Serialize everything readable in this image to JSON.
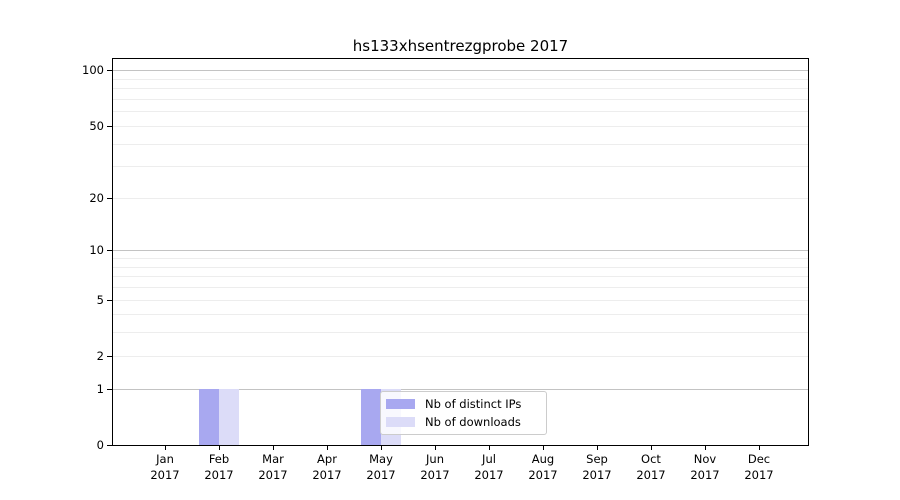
{
  "chart_data": {
    "type": "bar",
    "title": "hs133xhsentrezgprobe 2017",
    "year": "2017",
    "categories": [
      "Jan",
      "Feb",
      "Mar",
      "Apr",
      "May",
      "Jun",
      "Jul",
      "Aug",
      "Sep",
      "Oct",
      "Nov",
      "Dec"
    ],
    "series": [
      {
        "name": "Nb of distinct IPs",
        "color": "#a8a8f0",
        "values": [
          0,
          1,
          0,
          0,
          1,
          0,
          0,
          0,
          0,
          0,
          0,
          0
        ]
      },
      {
        "name": "Nb of downloads",
        "color": "#dcdcf8",
        "values": [
          0,
          1,
          0,
          0,
          1,
          0,
          0,
          0,
          0,
          0,
          0,
          0
        ]
      }
    ],
    "xlabel": "",
    "ylabel": "",
    "y_scale": "log1p",
    "ylim": [
      0,
      115
    ],
    "y_ticks": [
      0,
      1,
      2,
      5,
      10,
      20,
      50,
      100
    ],
    "major_gridlines": [
      1,
      10,
      100
    ],
    "minor_gridlines": [
      2,
      3,
      4,
      5,
      6,
      7,
      8,
      9,
      20,
      30,
      40,
      50,
      60,
      70,
      80,
      90
    ],
    "grid": "on",
    "legend_position": "lower-center"
  }
}
